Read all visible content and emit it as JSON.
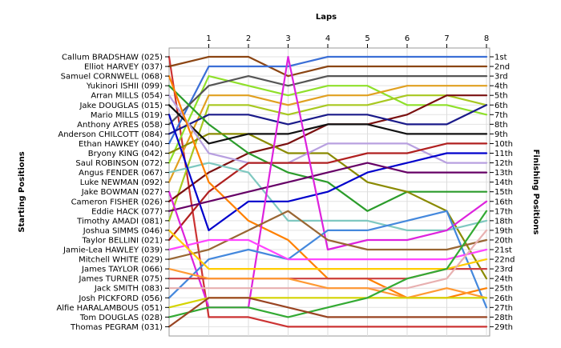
{
  "chart_data": {
    "type": "line",
    "title": "Laps",
    "xlabel": "Laps",
    "ylabel_left": "Starting Positions",
    "ylabel_right": "Finishing Positions",
    "x": [
      0,
      1,
      2,
      3,
      4,
      5,
      6,
      7,
      8
    ],
    "x_tick_labels": [
      "1",
      "2",
      "3",
      "4",
      "5",
      "6",
      "7",
      "8"
    ],
    "ylim": [
      1,
      29
    ],
    "grid": true,
    "starting_labels": [
      "Callum BRADSHAW (025)",
      "Elliot HARVEY (037)",
      "Samuel CORNWELL (068)",
      "Yukinori ISHII (099)",
      "Arran MILLS (054)",
      "Jake DOUGLAS (015)",
      "Mario MILLS (019)",
      "Anthony AYRES (058)",
      "Anderson CHILCOTT (084)",
      "Ethan HAWKEY (040)",
      "Bryony KING (042)",
      "Saul ROBINSON (072)",
      "Angus FENDER (067)",
      "Luke NEWMAN (092)",
      "Jake BOWMAN (027)",
      "Cameron FISHER (026)",
      "Eddie HACK (077)",
      "Timothy AMADI (081)",
      "Joshua SIMMS (046)",
      "Taylor BELLINI (021)",
      "Jamie-Lea HAWLEY (039)",
      "Mitchell WHITE (029)",
      "James TAYLOR (066)",
      "James TURNER (075)",
      "Jack SMITH (083)",
      "Josh PICKFORD (056)",
      "Alfie HARALAMBOUS (051)",
      "Tom DOUGLAS (028)",
      "Thomas PEGRAM (031)"
    ],
    "finishing_labels": [
      "1st",
      "2nd",
      "3rd",
      "4th",
      "5th",
      "6th",
      "7th",
      "8th",
      "9th",
      "10th",
      "11th",
      "12th",
      "13th",
      "14th",
      "15th",
      "16th",
      "17th",
      "18th",
      "19th",
      "20th",
      "21st",
      "22nd",
      "23rd",
      "24th",
      "25th",
      "26th",
      "27th",
      "28th",
      "29th"
    ],
    "series": [
      {
        "color": "#cc3333",
        "values": [
          1,
          28,
          28,
          29,
          29,
          29,
          29,
          29,
          29
        ]
      },
      {
        "color": "#8b4513",
        "values": [
          2,
          1,
          1,
          3,
          2,
          2,
          2,
          2,
          2
        ]
      },
      {
        "color": "#3b6fd6",
        "values": [
          10,
          2,
          2,
          2,
          1,
          1,
          1,
          1,
          1
        ]
      },
      {
        "color": "#8fe02a",
        "values": [
          12,
          3,
          4,
          5,
          4,
          4,
          6,
          6,
          7
        ]
      },
      {
        "color": "#555555",
        "values": [
          8,
          4,
          3,
          4,
          3,
          3,
          3,
          3,
          3
        ]
      },
      {
        "color": "#e0a020",
        "values": [
          14,
          5,
          5,
          6,
          5,
          5,
          4,
          4,
          4
        ]
      },
      {
        "color": "#a8c820",
        "values": [
          18,
          6,
          6,
          7,
          6,
          6,
          5,
          5,
          6
        ]
      },
      {
        "color": "#7a1010",
        "values": [
          16,
          13,
          11,
          10,
          8,
          8,
          7,
          5,
          5
        ]
      },
      {
        "color": "#1a1a8a",
        "values": [
          9,
          7,
          7,
          8,
          7,
          7,
          8,
          8,
          6
        ]
      },
      {
        "color": "#2b9c2b",
        "values": [
          4,
          8,
          11,
          13,
          14,
          17,
          15,
          15,
          15
        ]
      },
      {
        "color": "#8a8a00",
        "values": [
          11,
          9,
          9,
          11,
          11,
          14,
          15,
          17,
          24
        ]
      },
      {
        "color": "#111111",
        "values": [
          6,
          10,
          9,
          9,
          8,
          8,
          9,
          9,
          9
        ]
      },
      {
        "color": "#b8a0e0",
        "values": [
          5,
          11,
          12,
          12,
          10,
          10,
          10,
          12,
          12
        ]
      },
      {
        "color": "#b02020",
        "values": [
          20,
          15,
          12,
          12,
          12,
          11,
          11,
          10,
          10
        ]
      },
      {
        "color": "#7fc8c0",
        "values": [
          13,
          12,
          13,
          18,
          18,
          18,
          19,
          19,
          18
        ]
      },
      {
        "color": "#0000cc",
        "values": [
          7,
          19,
          16,
          16,
          15,
          13,
          12,
          11,
          11
        ]
      },
      {
        "color": "#ff8000",
        "values": [
          3,
          14,
          18,
          20,
          24,
          24,
          26,
          26,
          25
        ]
      },
      {
        "color": "#660066",
        "values": [
          17,
          16,
          15,
          14,
          13,
          12,
          13,
          13,
          13
        ]
      },
      {
        "color": "#dd22dd",
        "values": [
          15,
          27,
          27,
          1,
          21,
          20,
          20,
          19,
          16
        ]
      },
      {
        "color": "#4488dd",
        "values": [
          26,
          22,
          21,
          22,
          19,
          19,
          18,
          17,
          27
        ]
      },
      {
        "color": "#cc4040",
        "values": [
          24,
          24,
          24,
          24,
          24,
          24,
          24,
          23,
          23
        ]
      },
      {
        "color": "#996633",
        "values": [
          22,
          21,
          19,
          17,
          20,
          21,
          21,
          21,
          20
        ]
      },
      {
        "color": "#ff44ff",
        "values": [
          21,
          20,
          20,
          22,
          22,
          22,
          22,
          22,
          21
        ]
      },
      {
        "color": "#ffcc00",
        "values": [
          19,
          23,
          23,
          23,
          23,
          23,
          23,
          23,
          22
        ]
      },
      {
        "color": "#e8b0b0",
        "values": [
          25,
          25,
          25,
          25,
          25,
          25,
          25,
          24,
          19
        ]
      },
      {
        "color": "#ff9933",
        "values": [
          23,
          24,
          24,
          24,
          25,
          25,
          26,
          25,
          26
        ]
      },
      {
        "color": "#d4d400",
        "values": [
          27,
          26,
          26,
          26,
          26,
          26,
          26,
          26,
          26
        ]
      },
      {
        "color": "#33aa33",
        "values": [
          28,
          27,
          27,
          28,
          27,
          26,
          24,
          23,
          17
        ]
      },
      {
        "color": "#994422",
        "values": [
          29,
          26,
          26,
          27,
          28,
          28,
          28,
          28,
          28
        ]
      }
    ]
  }
}
